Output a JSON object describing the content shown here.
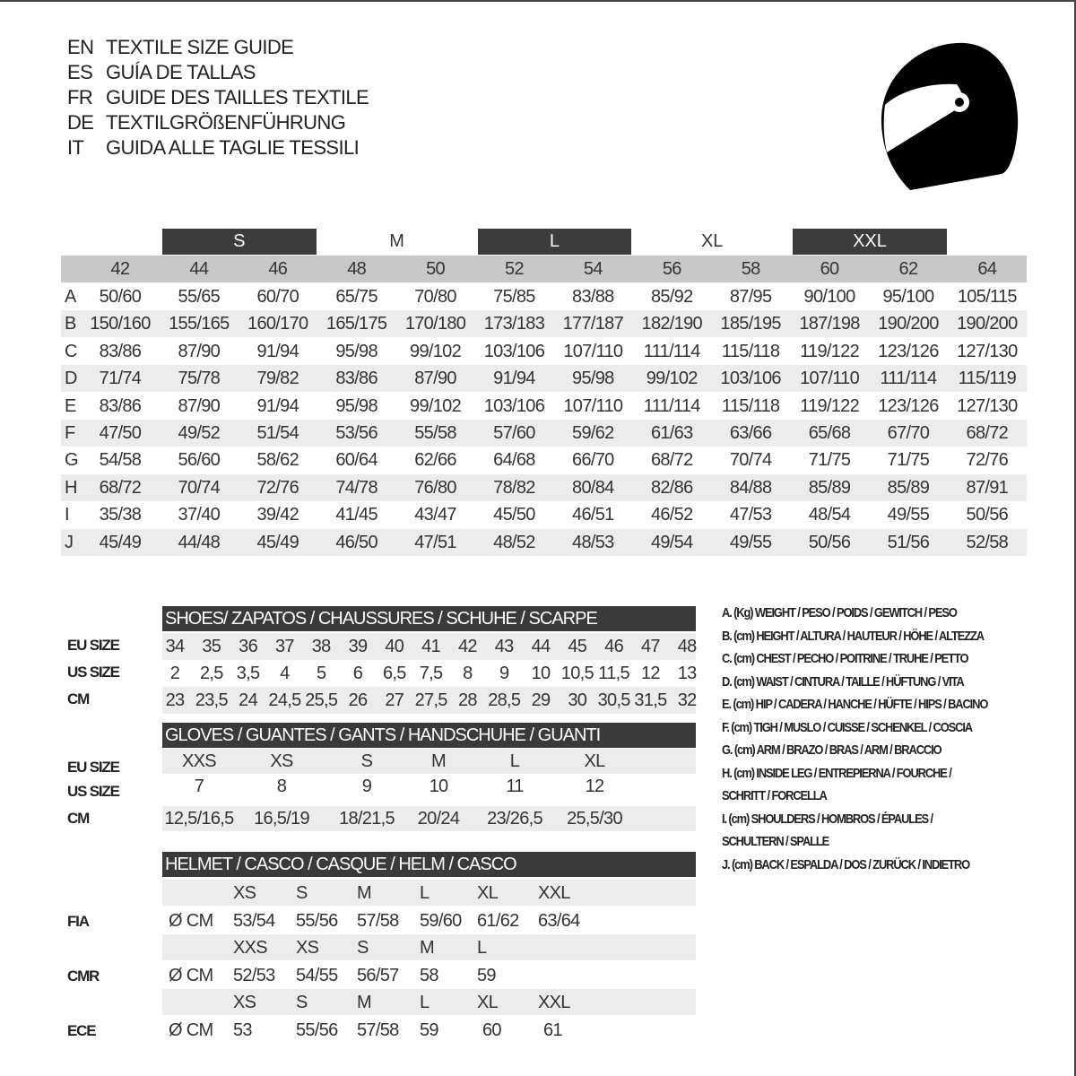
{
  "titles": [
    {
      "code": "EN",
      "text": "TEXTILE SIZE GUIDE"
    },
    {
      "code": "ES",
      "text": "GUÍA DE TALLAS"
    },
    {
      "code": "FR",
      "text": "GUIDE DES TAILLES TEXTILE"
    },
    {
      "code": "DE",
      "text": "TEXTILGRÖßENFÜHRUNG"
    },
    {
      "code": "IT",
      "text": "GUIDA ALLE TAGLIE TESSILI"
    }
  ],
  "helmet_icon": "helmet-icon",
  "colors": {
    "dark_band": "#3c3c3c",
    "header_gray": "#c8c8c8",
    "stripe_gray": "#ececec"
  },
  "size_table": {
    "groups": [
      {
        "label": "S",
        "sizes": [
          "44",
          "46"
        ],
        "style": "dark"
      },
      {
        "label": "M",
        "sizes": [
          "48",
          "50"
        ],
        "style": "plain"
      },
      {
        "label": "L",
        "sizes": [
          "52",
          "54"
        ],
        "style": "dark"
      },
      {
        "label": "XL",
        "sizes": [
          "56",
          "58"
        ],
        "style": "plain"
      },
      {
        "label": "XXL",
        "sizes": [
          "60",
          "62"
        ],
        "style": "dark"
      }
    ],
    "columns": [
      "42",
      "44",
      "46",
      "48",
      "50",
      "52",
      "54",
      "56",
      "58",
      "60",
      "62",
      "64"
    ],
    "rows": [
      {
        "label": "A",
        "values": [
          "50/60",
          "55/65",
          "60/70",
          "65/75",
          "70/80",
          "75/85",
          "83/88",
          "85/92",
          "87/95",
          "90/100",
          "95/100",
          "105/115"
        ]
      },
      {
        "label": "B",
        "values": [
          "150/160",
          "155/165",
          "160/170",
          "165/175",
          "170/180",
          "173/183",
          "177/187",
          "182/190",
          "185/195",
          "187/198",
          "190/200",
          "190/200"
        ]
      },
      {
        "label": "C",
        "values": [
          "83/86",
          "87/90",
          "91/94",
          "95/98",
          "99/102",
          "103/106",
          "107/110",
          "111/114",
          "115/118",
          "119/122",
          "123/126",
          "127/130"
        ]
      },
      {
        "label": "D",
        "values": [
          "71/74",
          "75/78",
          "79/82",
          "83/86",
          "87/90",
          "91/94",
          "95/98",
          "99/102",
          "103/106",
          "107/110",
          "111/114",
          "115/119"
        ]
      },
      {
        "label": "E",
        "values": [
          "83/86",
          "87/90",
          "91/94",
          "95/98",
          "99/102",
          "103/106",
          "107/110",
          "111/114",
          "115/118",
          "119/122",
          "123/126",
          "127/130"
        ]
      },
      {
        "label": "F",
        "values": [
          "47/50",
          "49/52",
          "51/54",
          "53/56",
          "55/58",
          "57/60",
          "59/62",
          "61/63",
          "63/66",
          "65/68",
          "67/70",
          "68/72"
        ]
      },
      {
        "label": "G",
        "values": [
          "54/58",
          "56/60",
          "58/62",
          "60/64",
          "62/66",
          "64/68",
          "66/70",
          "68/72",
          "70/74",
          "71/75",
          "71/75",
          "72/76"
        ]
      },
      {
        "label": "H",
        "values": [
          "68/72",
          "70/74",
          "72/76",
          "74/78",
          "76/80",
          "78/82",
          "80/84",
          "82/86",
          "84/88",
          "85/89",
          "85/89",
          "87/91"
        ]
      },
      {
        "label": "I",
        "values": [
          "35/38",
          "37/40",
          "39/42",
          "41/45",
          "43/47",
          "45/50",
          "46/51",
          "46/52",
          "47/53",
          "48/54",
          "49/55",
          "50/56"
        ]
      },
      {
        "label": "J",
        "values": [
          "45/49",
          "44/48",
          "45/49",
          "46/50",
          "47/51",
          "48/52",
          "48/53",
          "49/54",
          "49/55",
          "50/56",
          "51/56",
          "52/58"
        ]
      }
    ]
  },
  "shoes": {
    "title": "SHOES/ ZAPATOS / CHAUSSURES / SCHUHE / SCARPE",
    "rows": [
      {
        "label": "EU SIZE",
        "values": [
          "34",
          "35",
          "36",
          "37",
          "38",
          "39",
          "40",
          "41",
          "42",
          "43",
          "44",
          "45",
          "46",
          "47",
          "48"
        ]
      },
      {
        "label": "US SIZE",
        "values": [
          "2",
          "2,5",
          "3,5",
          "4",
          "5",
          "6",
          "6,5",
          "7,5",
          "8",
          "9",
          "10",
          "10,5",
          "11,5",
          "12",
          "13"
        ]
      },
      {
        "label": "CM",
        "values": [
          "23",
          "23,5",
          "24",
          "24,5",
          "25,5",
          "26",
          "27",
          "27,5",
          "28",
          "28,5",
          "29",
          "30",
          "30,5",
          "31,5",
          "32"
        ]
      }
    ]
  },
  "gloves": {
    "title": "GLOVES / GUANTES / GANTS / HANDSCHUHE / GUANTI",
    "rows": [
      {
        "label": "EU SIZE",
        "values": [
          "XXS",
          "XS",
          "S",
          "M",
          "L",
          "XL"
        ]
      },
      {
        "label": "US SIZE",
        "values": [
          "7",
          "8",
          "9",
          "10",
          "11",
          "12"
        ]
      },
      {
        "label": "CM",
        "values": [
          "12,5/16,5",
          "16,5/19",
          "18/21,5",
          "20/24",
          "23/26,5",
          "25,5/30"
        ]
      }
    ]
  },
  "helmet": {
    "title": "HELMET / CASCO / CASQUE / HELM / CASCO",
    "standards": [
      {
        "label": "FIA",
        "unit": "Ø CM",
        "sizes": [
          "XS",
          "S",
          "M",
          "L",
          "XL",
          "XXL"
        ],
        "values": [
          "53/54",
          "55/56",
          "57/58",
          "59/60",
          "61/62",
          "63/64"
        ]
      },
      {
        "label": "CMR",
        "unit": "Ø CM",
        "sizes": [
          "XXS",
          "XS",
          "S",
          "M",
          "L"
        ],
        "values": [
          "52/53",
          "54/55",
          "56/57",
          "58",
          "59"
        ]
      },
      {
        "label": "ECE",
        "unit": "Ø CM",
        "sizes": [
          "XS",
          "S",
          "M",
          "L",
          "XL",
          "XXL"
        ],
        "values": [
          "53",
          "55/56",
          "57/58",
          "59",
          "60",
          "61"
        ]
      }
    ]
  },
  "legend": [
    "A. (Kg) WEIGHT / PESO / POIDS / GEWITCH / PESO",
    "B. (cm) HEIGHT / ALTURA / HAUTEUR / HÖHE / ALTEZZA",
    "C. (cm) CHEST / PECHO / POITRINE / TRUHE / PETTO",
    "D. (cm) WAIST / CINTURA / TAILLE / HÜFTUNG / VITA",
    "E. (cm) HIP / CADERA / HANCHE / HÜFTE / HIPS /  BACINO",
    "F.  (cm) TIGH / MUSLO / CUISSE / SCHENKEL / COSCIA",
    "G. (cm) ARM  / BRAZO / BRAS / ARM / BRACCIO",
    "H. (cm) INSIDE LEG / ENTREPIERNA / FOURCHE /",
    "SCHRITT / FORCELLA",
    "I.  (cm) SHOULDERS / HOMBROS / ÉPAULES /",
    "SCHULTERN / SPALLE",
    "J. (cm) BACK / ESPALDA / DOS / ZURÜCK / INDIETRO"
  ]
}
